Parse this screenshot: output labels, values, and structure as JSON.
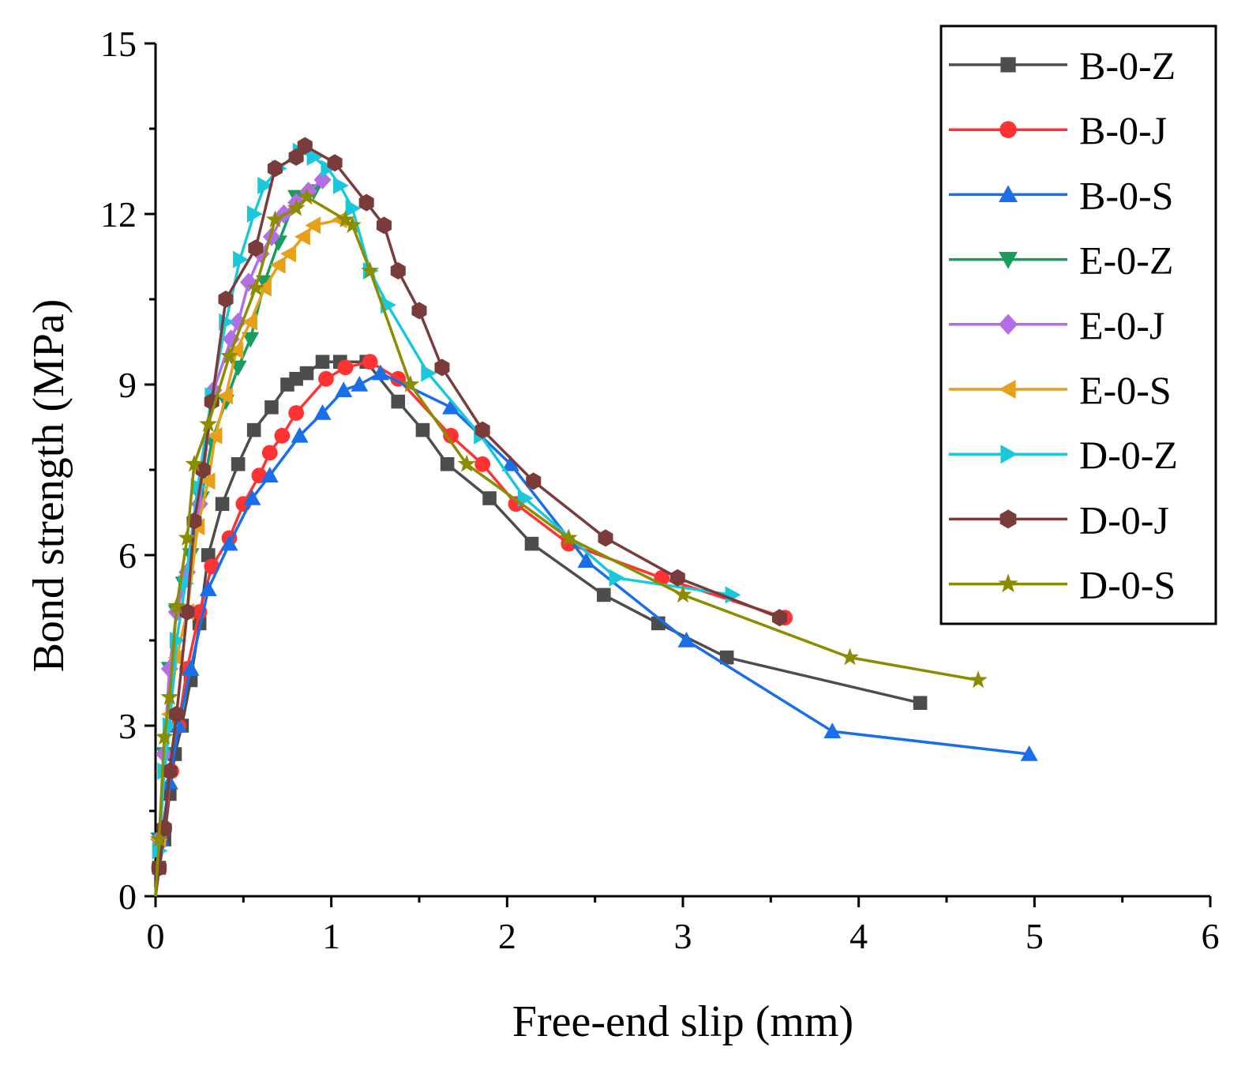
{
  "chart_data": {
    "type": "line",
    "title": "",
    "xlabel": "Free-end slip (mm)",
    "ylabel": "Bond strength (MPa)",
    "xlim": [
      0,
      6
    ],
    "ylim": [
      0,
      15
    ],
    "xticks": [
      "0",
      "1",
      "2",
      "3",
      "4",
      "5",
      "6"
    ],
    "yticks": [
      "0",
      "3",
      "6",
      "9",
      "12",
      "15"
    ],
    "legend_position": "top-right",
    "series": [
      {
        "name": "B-0-Z",
        "color": "#4d4d4d",
        "marker": "square",
        "x": [
          0.02,
          0.05,
          0.08,
          0.11,
          0.15,
          0.2,
          0.25,
          0.3,
          0.38,
          0.47,
          0.56,
          0.66,
          0.75,
          0.8,
          0.86,
          0.95,
          1.05,
          1.2,
          1.38,
          1.52,
          1.66,
          1.9,
          2.14,
          2.55,
          2.86,
          3.25,
          4.35
        ],
        "y": [
          0.5,
          1.0,
          1.8,
          2.5,
          3.0,
          3.8,
          4.8,
          6.0,
          6.9,
          7.6,
          8.2,
          8.6,
          9.0,
          9.1,
          9.2,
          9.4,
          9.4,
          9.4,
          8.7,
          8.2,
          7.6,
          7.0,
          6.2,
          5.3,
          4.8,
          4.2,
          3.4
        ]
      },
      {
        "name": "B-0-J",
        "color": "#ff3333",
        "marker": "circle",
        "x": [
          0.02,
          0.05,
          0.09,
          0.13,
          0.18,
          0.25,
          0.32,
          0.42,
          0.5,
          0.59,
          0.65,
          0.72,
          0.8,
          0.97,
          1.08,
          1.22,
          1.38,
          1.68,
          1.86,
          2.05,
          2.35,
          2.88,
          3.58
        ],
        "y": [
          0.5,
          1.2,
          2.2,
          3.0,
          4.0,
          5.0,
          5.8,
          6.3,
          6.9,
          7.4,
          7.8,
          8.1,
          8.5,
          9.1,
          9.3,
          9.4,
          9.1,
          8.1,
          7.6,
          6.9,
          6.2,
          5.6,
          4.9
        ]
      },
      {
        "name": "B-0-S",
        "color": "#1a6ee8",
        "marker": "triangle-up",
        "x": [
          0.03,
          0.08,
          0.13,
          0.2,
          0.3,
          0.42,
          0.55,
          0.65,
          0.82,
          0.95,
          1.07,
          1.16,
          1.28,
          1.68,
          2.02,
          2.45,
          3.02,
          3.85,
          4.97
        ],
        "y": [
          1.0,
          2.0,
          3.0,
          4.0,
          5.4,
          6.2,
          7.0,
          7.4,
          8.1,
          8.5,
          8.9,
          9.0,
          9.2,
          8.6,
          7.6,
          5.9,
          4.5,
          2.9,
          2.5
        ]
      },
      {
        "name": "E-0-Z",
        "color": "#1a9c5e",
        "marker": "triangle-down",
        "x": [
          0.02,
          0.05,
          0.08,
          0.12,
          0.16,
          0.2,
          0.26,
          0.32,
          0.4,
          0.47,
          0.54,
          0.62,
          0.7,
          0.8,
          0.9
        ],
        "y": [
          1.0,
          2.5,
          4.0,
          5.0,
          5.5,
          6.0,
          7.0,
          8.0,
          8.7,
          9.3,
          9.8,
          10.8,
          11.5,
          12.3,
          12.4
        ]
      },
      {
        "name": "E-0-J",
        "color": "#b36ee6",
        "marker": "diamond",
        "x": [
          0.02,
          0.05,
          0.08,
          0.12,
          0.18,
          0.25,
          0.33,
          0.43,
          0.47,
          0.53,
          0.6,
          0.66,
          0.73,
          0.8,
          0.87,
          0.95
        ],
        "y": [
          1.0,
          2.5,
          4.0,
          5.0,
          5.7,
          6.9,
          8.9,
          9.8,
          10.1,
          10.8,
          11.3,
          11.6,
          12.0,
          12.2,
          12.4,
          12.6
        ]
      },
      {
        "name": "E-0-S",
        "color": "#e6a01a",
        "marker": "triangle-left",
        "x": [
          0.02,
          0.05,
          0.08,
          0.12,
          0.18,
          0.24,
          0.3,
          0.34,
          0.4,
          0.46,
          0.54,
          0.62,
          0.7,
          0.76,
          0.84,
          0.9,
          1.05
        ],
        "y": [
          1.0,
          2.2,
          3.2,
          4.2,
          5.0,
          6.5,
          7.3,
          8.1,
          8.8,
          9.6,
          10.1,
          10.7,
          11.1,
          11.3,
          11.6,
          11.8,
          11.9
        ]
      },
      {
        "name": "D-0-Z",
        "color": "#1ac8d9",
        "marker": "triangle-right",
        "x": [
          0.02,
          0.05,
          0.08,
          0.12,
          0.17,
          0.24,
          0.32,
          0.4,
          0.48,
          0.56,
          0.62,
          0.7,
          0.82,
          0.9,
          0.98,
          1.05,
          1.12,
          1.22,
          1.32,
          1.55,
          1.85,
          2.1,
          2.62,
          3.28
        ],
        "y": [
          0.8,
          2.2,
          3.0,
          4.5,
          5.5,
          7.2,
          8.8,
          10.1,
          11.2,
          12.0,
          12.5,
          12.8,
          13.1,
          13.0,
          12.8,
          12.5,
          12.1,
          11.0,
          10.4,
          9.2,
          8.1,
          7.0,
          5.6,
          5.3
        ]
      },
      {
        "name": "D-0-J",
        "color": "#7a3b3b",
        "marker": "hexagon",
        "x": [
          0.02,
          0.05,
          0.08,
          0.12,
          0.18,
          0.22,
          0.27,
          0.32,
          0.4,
          0.57,
          0.68,
          0.8,
          0.85,
          1.02,
          1.2,
          1.3,
          1.38,
          1.5,
          1.63,
          1.86,
          2.15,
          2.56,
          2.97,
          3.55
        ],
        "y": [
          0.5,
          1.2,
          2.2,
          3.2,
          5.0,
          6.6,
          7.5,
          8.7,
          10.5,
          11.4,
          12.8,
          13.0,
          13.2,
          12.9,
          12.2,
          11.8,
          11.0,
          10.3,
          9.3,
          8.2,
          7.3,
          6.3,
          5.6,
          4.9
        ]
      },
      {
        "name": "D-0-S",
        "color": "#8c8c00",
        "marker": "star",
        "x": [
          0.02,
          0.05,
          0.08,
          0.12,
          0.18,
          0.22,
          0.3,
          0.42,
          0.57,
          0.68,
          0.8,
          0.86,
          1.08,
          1.12,
          1.22,
          1.45,
          1.77,
          2.35,
          3.0,
          3.95,
          4.68
        ],
        "y": [
          1.0,
          2.8,
          3.5,
          5.1,
          6.3,
          7.6,
          8.3,
          9.5,
          10.7,
          11.9,
          12.1,
          12.3,
          11.9,
          11.8,
          11.0,
          9.0,
          7.6,
          6.3,
          5.3,
          4.2,
          3.8
        ]
      }
    ]
  }
}
